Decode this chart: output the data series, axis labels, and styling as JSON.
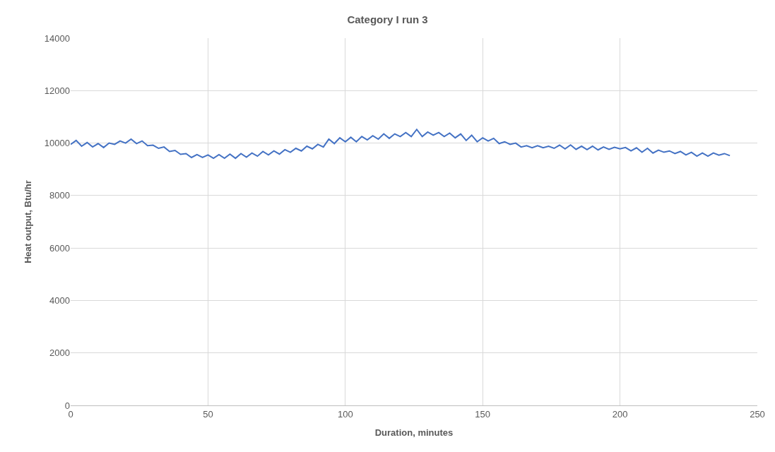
{
  "chart_data": {
    "type": "line",
    "title": "Category I run 3",
    "xlabel": "Duration, minutes",
    "ylabel": "Heat output, Btu/hr",
    "xlim": [
      0,
      250
    ],
    "xticks": [
      0,
      50,
      100,
      150,
      200,
      250
    ],
    "ylim": [
      0,
      14000
    ],
    "yticks": [
      0,
      2000,
      4000,
      6000,
      8000,
      10000,
      12000,
      14000
    ],
    "grid": true,
    "legend": false,
    "series": [
      {
        "color": "#4472c4",
        "x": [
          0,
          2,
          4,
          6,
          8,
          10,
          12,
          14,
          16,
          18,
          20,
          22,
          24,
          26,
          28,
          30,
          32,
          34,
          36,
          38,
          40,
          42,
          44,
          46,
          48,
          50,
          52,
          54,
          56,
          58,
          60,
          62,
          64,
          66,
          68,
          70,
          72,
          74,
          76,
          78,
          80,
          82,
          84,
          86,
          88,
          90,
          92,
          94,
          96,
          98,
          100,
          102,
          104,
          106,
          108,
          110,
          112,
          114,
          116,
          118,
          120,
          122,
          124,
          126,
          128,
          130,
          132,
          134,
          136,
          138,
          140,
          142,
          144,
          146,
          148,
          150,
          152,
          154,
          156,
          158,
          160,
          162,
          164,
          166,
          168,
          170,
          172,
          174,
          176,
          178,
          180,
          182,
          184,
          186,
          188,
          190,
          192,
          194,
          196,
          198,
          200,
          202,
          204,
          206,
          208,
          210,
          212,
          214,
          216,
          218,
          220,
          222,
          224,
          226,
          228,
          230,
          232,
          234,
          236,
          238,
          240
        ],
        "values": [
          9950,
          10100,
          9880,
          10020,
          9850,
          9980,
          9830,
          10000,
          9950,
          10080,
          10000,
          10150,
          9980,
          10080,
          9900,
          9920,
          9800,
          9850,
          9680,
          9720,
          9570,
          9600,
          9450,
          9560,
          9450,
          9550,
          9420,
          9560,
          9420,
          9580,
          9420,
          9600,
          9460,
          9620,
          9500,
          9680,
          9550,
          9700,
          9580,
          9750,
          9650,
          9800,
          9700,
          9880,
          9780,
          9950,
          9850,
          10150,
          9980,
          10200,
          10050,
          10220,
          10050,
          10250,
          10120,
          10280,
          10150,
          10350,
          10180,
          10350,
          10250,
          10400,
          10250,
          10520,
          10250,
          10420,
          10300,
          10400,
          10250,
          10380,
          10200,
          10350,
          10100,
          10300,
          10050,
          10200,
          10080,
          10180,
          9980,
          10050,
          9950,
          10000,
          9850,
          9900,
          9820,
          9900,
          9820,
          9880,
          9800,
          9920,
          9780,
          9930,
          9760,
          9880,
          9750,
          9880,
          9740,
          9850,
          9760,
          9840,
          9780,
          9830,
          9700,
          9820,
          9650,
          9800,
          9620,
          9730,
          9650,
          9700,
          9600,
          9680,
          9550,
          9650,
          9500,
          9620,
          9500,
          9620,
          9540,
          9600,
          9520
        ]
      }
    ]
  }
}
